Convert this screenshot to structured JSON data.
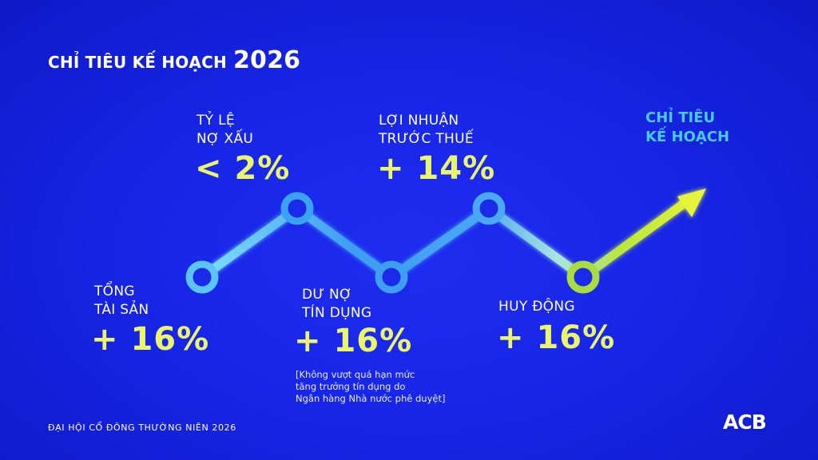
{
  "title": {
    "main": "CHỈ TIÊU KẾ HOẠCH",
    "year": "2026"
  },
  "metrics": [
    {
      "label_line1": "TỔNG",
      "label_line2": "TÀI SẢN",
      "value": "+ 16%"
    },
    {
      "label_line1": "TỶ LỆ",
      "label_line2": "NỢ XẤU",
      "value": "< 2%"
    },
    {
      "label_line1": "DƯ NỢ",
      "label_line2": "TÍN DỤNG",
      "value": "+ 16%",
      "note_line1": "[Không vượt quá hạn mức",
      "note_line2": "tăng trưởng tín dụng do",
      "note_line3": "Ngân hàng Nhà nước phê duyệt]"
    },
    {
      "label_line1": "LỢI NHUẬN",
      "label_line2": "TRƯỚC THUẾ",
      "value": "+ 14%"
    },
    {
      "label_line1": "HUY ĐỘNG",
      "value": "+ 16%"
    }
  ],
  "target_label": {
    "line1": "CHỈ TIÊU",
    "line2": "KẾ HOẠCH"
  },
  "footer": "ĐẠI HỘI CỔ ĐÔNG THƯỜNG NIÊN 2026",
  "logo": "ACB",
  "colors": {
    "background": "#1726e6",
    "value": "#eaf56b",
    "target": "#49c8f0",
    "arrow": "#d8f03a"
  }
}
